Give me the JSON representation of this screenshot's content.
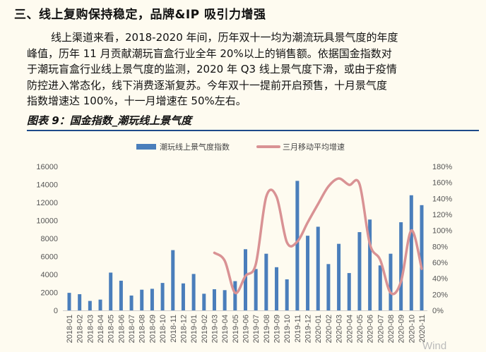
{
  "heading": "三、线上复购保持稳定，品牌&IP 吸引力增强",
  "paragraph_lines": [
    "线上渠道来看，2018-2020 年间，历年双十一均为潮流玩具景气度的年度",
    "峰值，历年 11 月贡献潮玩盲盒行业全年 20%以上的销售额。依据国金指数对",
    "于潮玩盲盒行业线上景气度的监测，2020 年 Q3 线上景气度下滑，或由于疫情",
    "防控进入常态化，线下消费逐渐复苏。今年双十一提前开启预售，十月景气度",
    "指数增速达 100%，十一月增速在 50%左右。"
  ],
  "figure_title": "图表 9：国金指数_潮玩线上景气度",
  "watermark": "Wind",
  "chart_data": {
    "type": "bar+line",
    "categories": [
      "2018-01",
      "2018-02",
      "2018-03",
      "2018-04",
      "2018-05",
      "2018-06",
      "2018-07",
      "2018-08",
      "2018-09",
      "2018-10",
      "2018-11",
      "2018-12",
      "2019-01",
      "2019-02",
      "2019-03",
      "2019-04",
      "2019-05",
      "2019-06",
      "2019-07",
      "2019-08",
      "2019-09",
      "2019-10",
      "2019-11",
      "2019-12",
      "2020-01",
      "2020-02",
      "2020-03",
      "2020-04",
      "2020-05",
      "2020-06",
      "2020-07",
      "2020-08",
      "2020-09",
      "2020-10",
      "2020-11"
    ],
    "series": [
      {
        "name": "潮玩线上景气度指数",
        "type": "bar",
        "axis": "left",
        "color": "#4a7ebb",
        "values": [
          1950,
          1800,
          1050,
          1200,
          4200,
          3300,
          1650,
          2300,
          2400,
          3050,
          6700,
          3000,
          4050,
          1850,
          2350,
          2250,
          3250,
          6800,
          4600,
          6300,
          4800,
          3450,
          14400,
          8300,
          9300,
          5150,
          7400,
          4150,
          8700,
          10100,
          5000,
          6300,
          9800,
          12800,
          11700
        ]
      },
      {
        "name": "三月移动平均增速",
        "type": "line",
        "axis": "right",
        "color": "#d99294",
        "values": [
          null,
          null,
          null,
          null,
          null,
          null,
          null,
          null,
          null,
          null,
          null,
          null,
          null,
          null,
          72,
          62,
          22,
          43,
          58,
          142,
          142,
          85,
          86,
          110,
          133,
          155,
          165,
          157,
          158,
          83,
          63,
          22,
          36,
          100,
          52
        ]
      }
    ],
    "yleft": {
      "range": [
        0,
        16000
      ],
      "ticks": [
        "0",
        "2000",
        "4000",
        "6000",
        "8000",
        "10000",
        "12000",
        "14000",
        "16000"
      ]
    },
    "yright": {
      "range": [
        0,
        180
      ],
      "ticks": [
        "0%",
        "20%",
        "40%",
        "60%",
        "80%",
        "100%",
        "120%",
        "140%",
        "160%",
        "180%"
      ]
    },
    "legend_position": "top",
    "grid": false
  }
}
